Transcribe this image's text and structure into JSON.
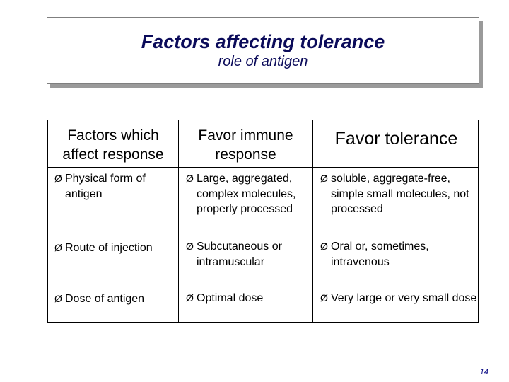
{
  "title": {
    "main": "Factors affecting tolerance",
    "sub": "role of antigen"
  },
  "table": {
    "headers": [
      "Factors which affect response",
      "Favor immune response",
      "Favor tolerance"
    ],
    "rows": [
      [
        "Physical form of antigen",
        "Large, aggregated, complex molecules, properly processed",
        "soluble, aggregate-free, simple small molecules, not processed"
      ],
      [
        "Route of injection",
        "Subcutaneous or intramuscular",
        "Oral or, sometimes, intravenous"
      ],
      [
        "Dose of antigen",
        "Optimal dose",
        "Very large or very small dose"
      ]
    ],
    "bullet": "Ø"
  },
  "page_number": "14"
}
